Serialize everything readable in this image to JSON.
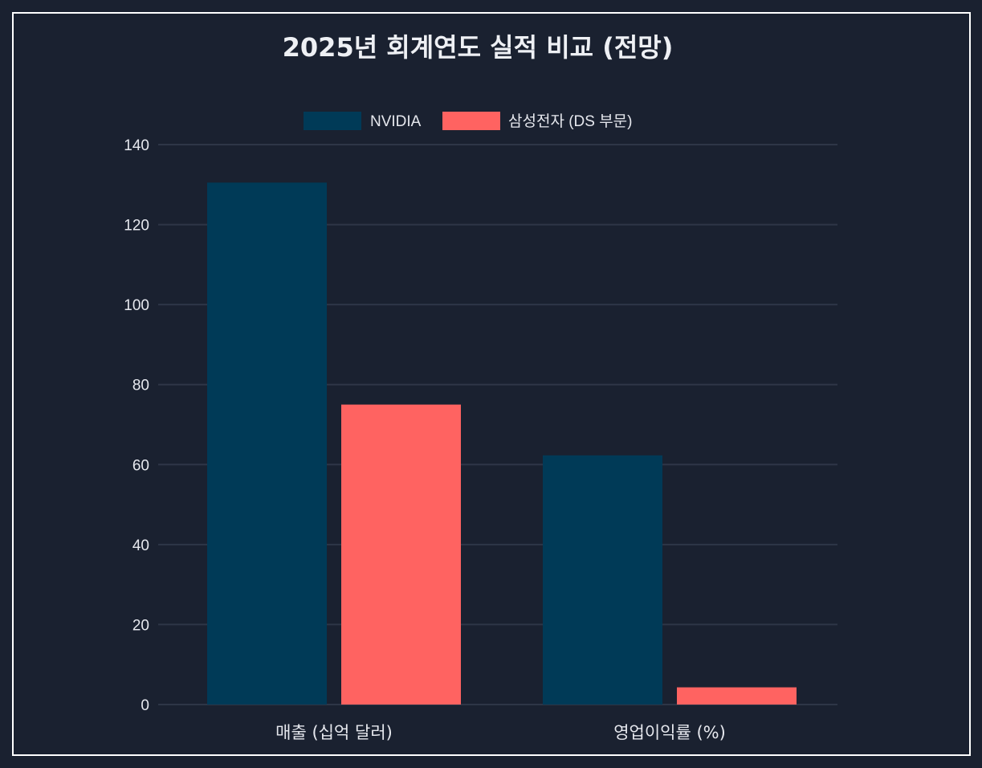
{
  "chart_data": {
    "type": "bar",
    "title": "2025년 회계연도 실적 비교 (전망)",
    "categories": [
      "매출 (십억 달러)",
      "영업이익률 (%)"
    ],
    "series": [
      {
        "name": "NVIDIA",
        "values": [
          130.5,
          62.3
        ],
        "color": "#003a57"
      },
      {
        "name": "삼성전자 (DS 부문)",
        "values": [
          75.0,
          4.3
        ],
        "color": "#ff6361"
      }
    ],
    "ylim": [
      0,
      140
    ],
    "yticks": [
      0,
      20,
      40,
      60,
      80,
      100,
      120,
      140
    ],
    "grid": true,
    "legend_position": "top-center"
  },
  "colors": {
    "background": "#1a2130",
    "frame_border": "#ffffff",
    "grid": "#2e3647",
    "text": "#e6e8ee"
  }
}
